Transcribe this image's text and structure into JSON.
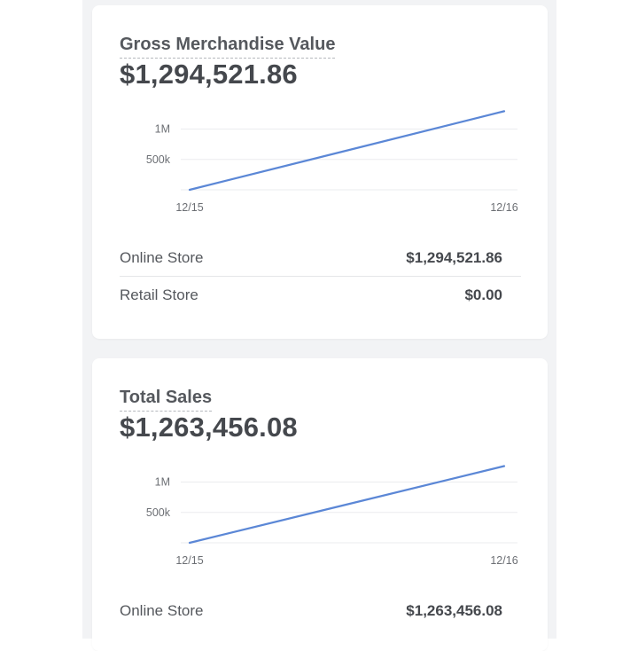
{
  "cards": [
    {
      "title": "Gross Merchandise Value",
      "value": "$1,294,521.86",
      "rows": [
        {
          "label": "Online Store",
          "value": "$1,294,521.86"
        },
        {
          "label": "Retail Store",
          "value": "$0.00"
        }
      ]
    },
    {
      "title": "Total Sales",
      "value": "$1,263,456.08",
      "rows": [
        {
          "label": "Online Store",
          "value": "$1,263,456.08"
        }
      ]
    }
  ],
  "colors": {
    "line": "#5b87d6",
    "grid": "#ebecef"
  },
  "chart_data": [
    {
      "type": "line",
      "x": [
        "12/15",
        "12/16"
      ],
      "series": [
        {
          "values": [
            0,
            1294521.86
          ]
        }
      ],
      "yticks": [
        {
          "value": 500000,
          "label": "500k"
        },
        {
          "value": 1000000,
          "label": "1M"
        }
      ],
      "ylim": [
        0,
        1300000
      ],
      "grid": true
    },
    {
      "type": "line",
      "x": [
        "12/15",
        "12/16"
      ],
      "series": [
        {
          "values": [
            0,
            1263456.08
          ]
        }
      ],
      "yticks": [
        {
          "value": 500000,
          "label": "500k"
        },
        {
          "value": 1000000,
          "label": "1M"
        }
      ],
      "ylim": [
        0,
        1300000
      ],
      "grid": true
    }
  ]
}
